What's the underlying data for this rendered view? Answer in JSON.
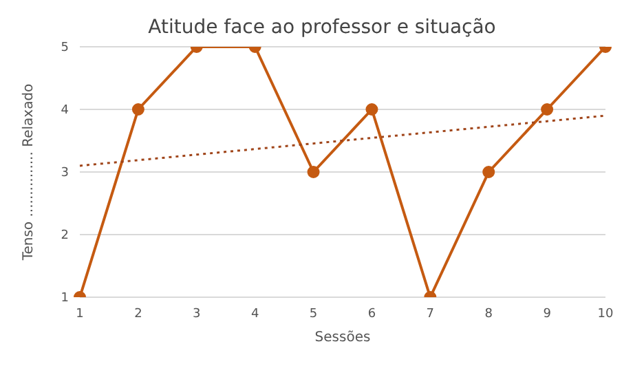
{
  "chart_data": {
    "type": "line",
    "title": "Atitude face ao professor e situação",
    "xlabel": "Sessões",
    "ylabel": "Tenso ............... Relaxado",
    "categories": [
      "1",
      "2",
      "3",
      "4",
      "5",
      "6",
      "7",
      "8",
      "9",
      "10"
    ],
    "series": [
      {
        "color": "#c55a11",
        "values": [
          1,
          4,
          5,
          5,
          3,
          4,
          1,
          3,
          4,
          5
        ],
        "marker": "circle",
        "line_style": "solid"
      },
      {
        "type": "line",
        "color": "#a0451a",
        "x": [
          "1",
          "10"
        ],
        "values": [
          3.1,
          3.9
        ],
        "marker": "none",
        "line_style": "dotted"
      }
    ],
    "ylim": [
      1,
      5
    ],
    "yticks": [
      1,
      2,
      3,
      4,
      5
    ],
    "grid": "y",
    "legend": false
  }
}
